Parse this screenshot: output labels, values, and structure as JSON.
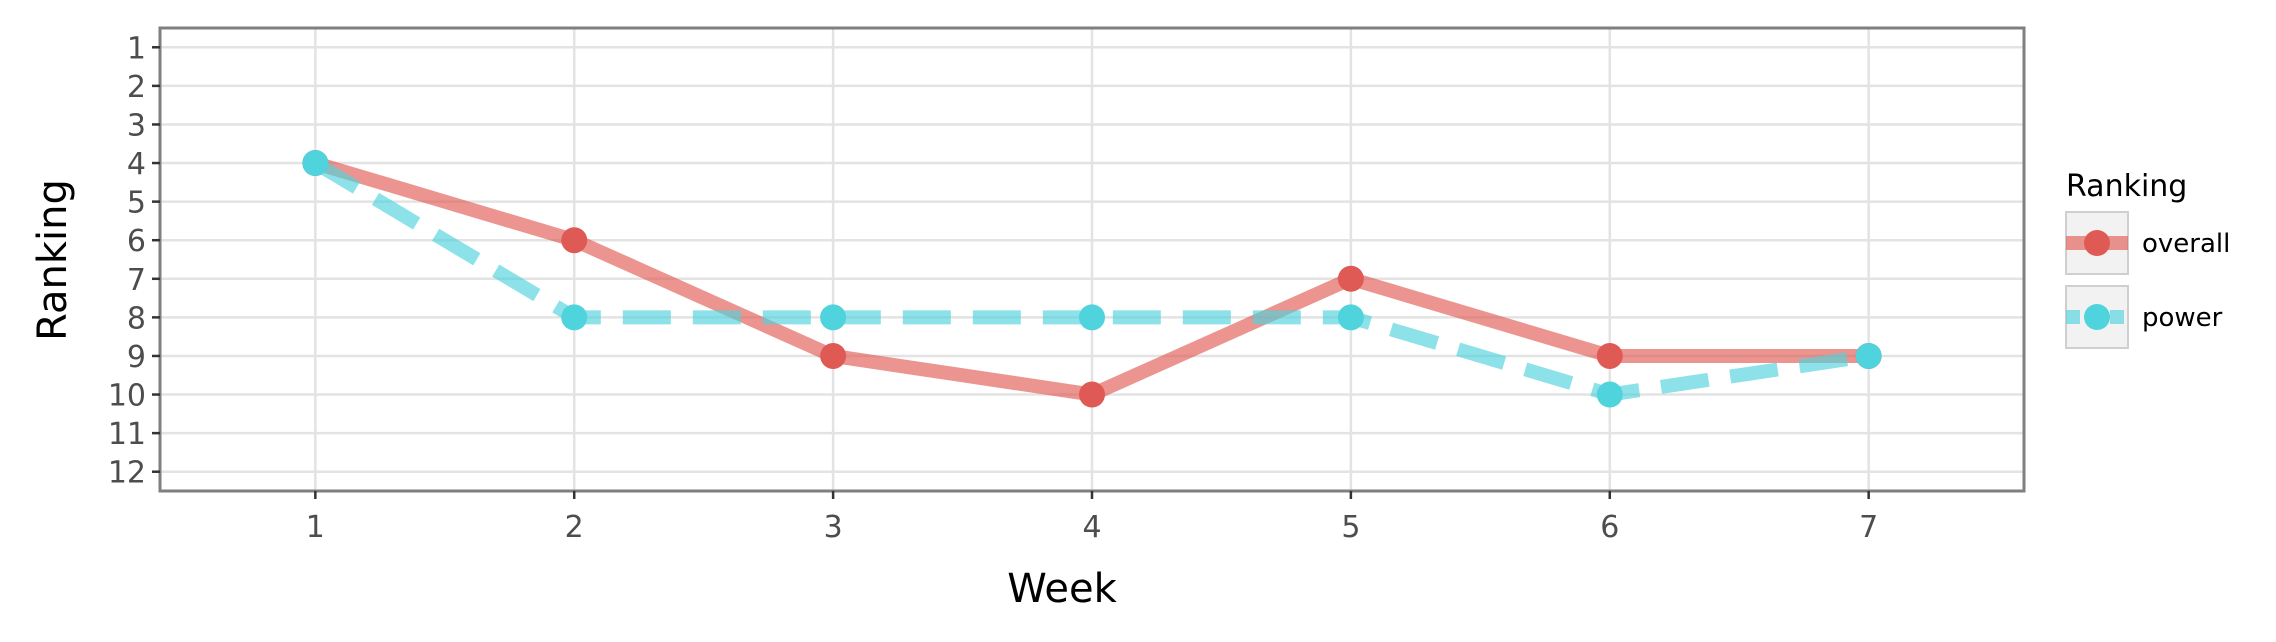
{
  "chart_data": {
    "type": "line",
    "xlabel": "Week",
    "ylabel": "Ranking",
    "x": [
      1,
      2,
      3,
      4,
      5,
      6,
      7
    ],
    "xlim": [
      0.4,
      7.6
    ],
    "ylim": [
      12.5,
      0.5
    ],
    "y_reversed": true,
    "yticks": [
      1,
      2,
      3,
      4,
      5,
      6,
      7,
      8,
      9,
      10,
      11,
      12
    ],
    "grid": true,
    "legend": {
      "title": "Ranking",
      "position": "right"
    },
    "series": [
      {
        "name": "overall",
        "values": [
          4,
          6,
          9,
          10,
          7,
          9,
          9
        ],
        "color": "#e05a55",
        "linestyle": "solid"
      },
      {
        "name": "power",
        "values": [
          4,
          8,
          8,
          8,
          8,
          10,
          9
        ],
        "color": "#4fd3dc",
        "linestyle": "dashed"
      }
    ]
  }
}
